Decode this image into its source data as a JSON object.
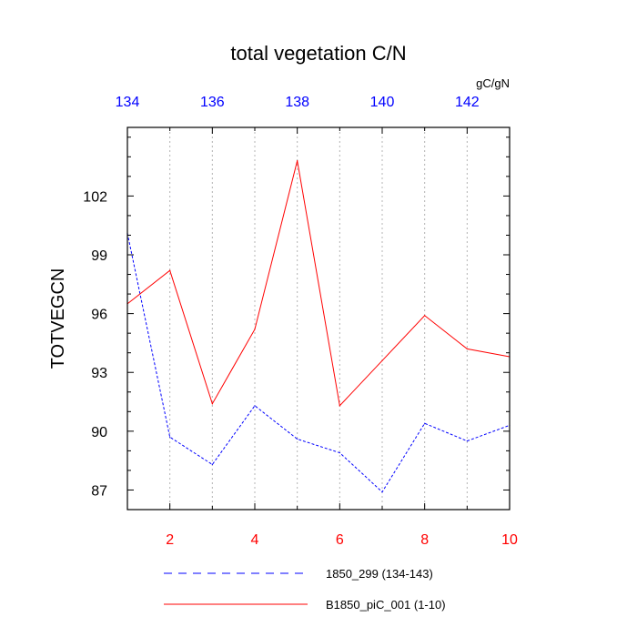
{
  "chart_data": {
    "type": "line",
    "title": "total vegetation C/N",
    "ylabel": "TOTVEGCN",
    "top_axis_units": "gC/gN",
    "ylim": [
      86,
      105.5
    ],
    "yticks": [
      87,
      90,
      93,
      96,
      99,
      102
    ],
    "x_bottom": {
      "range": [
        1,
        10
      ],
      "ticks": [
        2,
        4,
        6,
        8,
        10
      ],
      "tick_color": "#ff0000"
    },
    "x_top": {
      "range": [
        134,
        143
      ],
      "ticks": [
        134,
        136,
        138,
        140,
        142
      ],
      "tick_color": "#0000ff"
    },
    "grid": "vertical dotted at bottom-axis integer positions",
    "series": [
      {
        "name": "1850_299 (134-143)",
        "axis": "top",
        "color": "#0000ff",
        "style": "dashed",
        "x": [
          134,
          135,
          136,
          137,
          138,
          139,
          140,
          141,
          142,
          143
        ],
        "values": [
          100.1,
          89.7,
          88.3,
          91.3,
          89.6,
          88.9,
          86.9,
          90.4,
          89.5,
          90.3
        ]
      },
      {
        "name": "B1850_piC_001 (1-10)",
        "axis": "bottom",
        "color": "#ff0000",
        "style": "solid",
        "x": [
          1,
          2,
          3,
          4,
          5,
          6,
          7,
          8,
          9,
          10
        ],
        "values": [
          96.5,
          98.2,
          91.4,
          95.2,
          103.8,
          91.3,
          93.6,
          95.9,
          94.2,
          93.8
        ]
      }
    ],
    "legend_position": "bottom"
  }
}
